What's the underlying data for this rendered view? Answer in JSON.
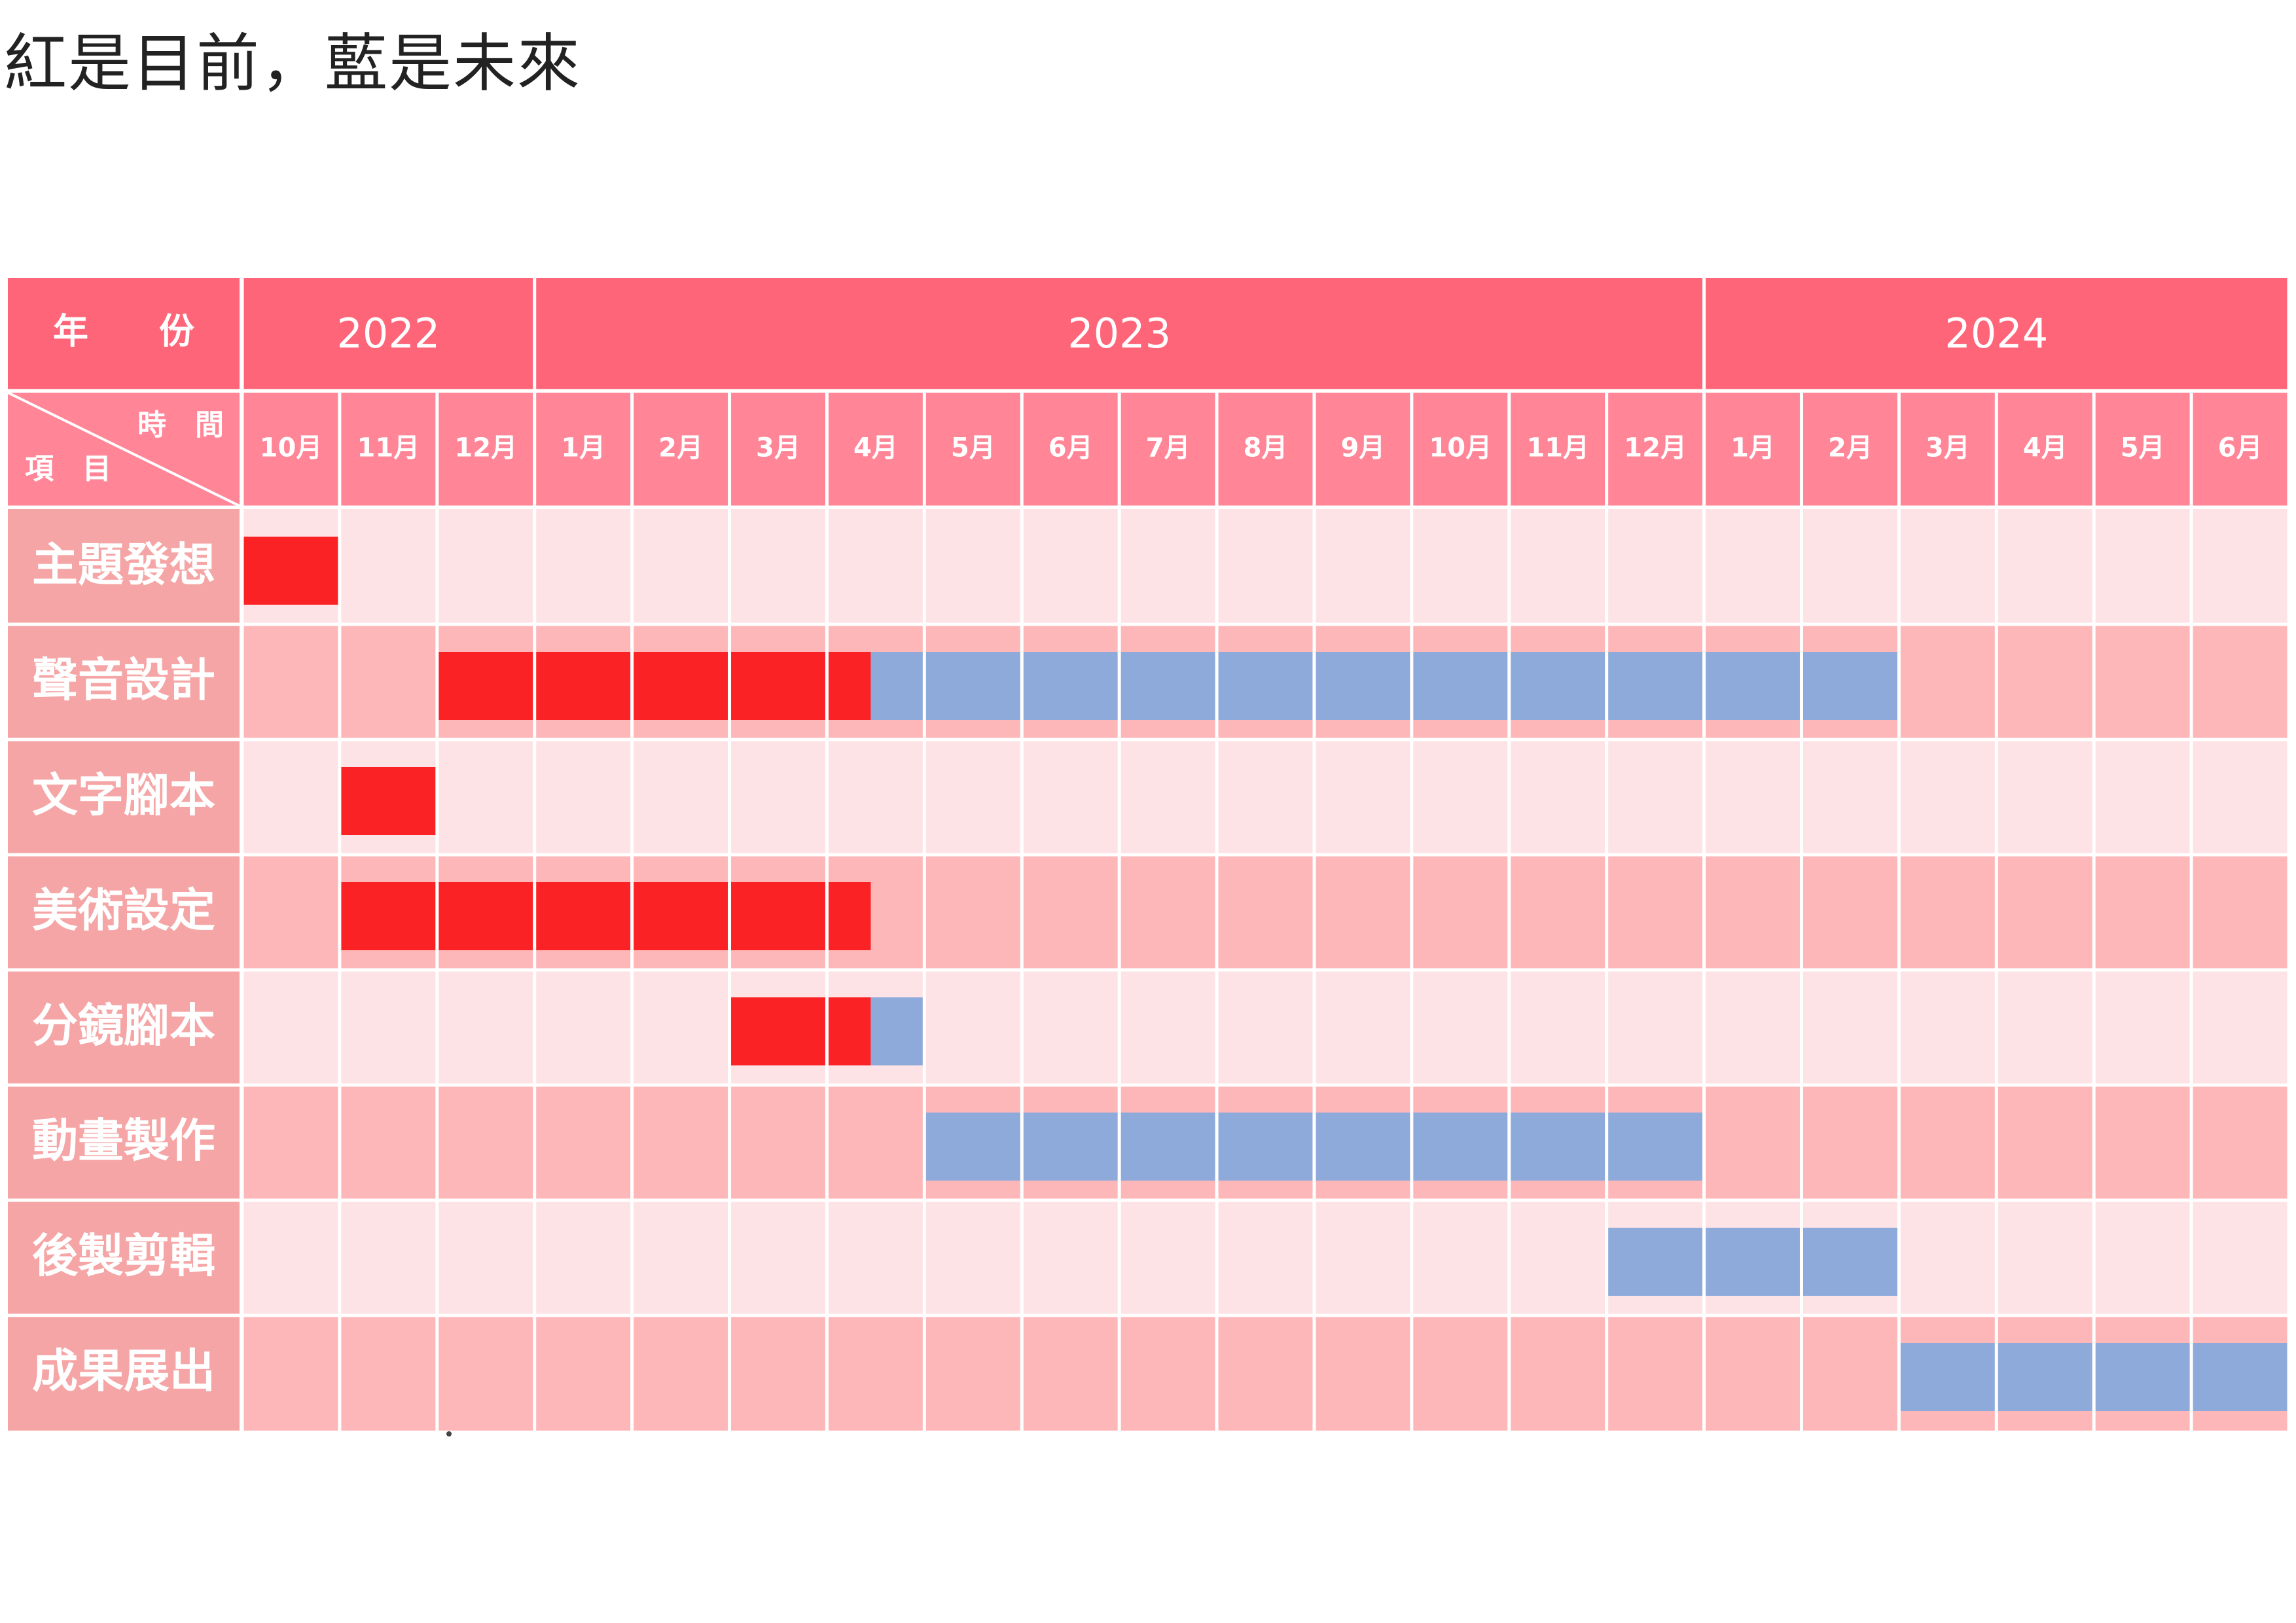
{
  "title": "紅是目前，藍是未來",
  "header": {
    "year_label": "年　　份",
    "time_label": "時　間",
    "item_label": "項　目"
  },
  "colors": {
    "header_dark": "#ff6578",
    "header_month": "#ff8597",
    "row_light": "#fde3e5",
    "row_dark": "#feb7b9",
    "label_cell": "#f5a5a5",
    "current": "#fb2226",
    "future": "#8eaadb"
  },
  "chart_data": {
    "type": "gantt",
    "title": "紅是目前，藍是未來",
    "legend": [
      {
        "name": "目前",
        "color": "#fb2226"
      },
      {
        "name": "未來",
        "color": "#8eaadb"
      }
    ],
    "years": [
      {
        "label": "2022",
        "months": 3
      },
      {
        "label": "2023",
        "months": 12
      },
      {
        "label": "2024",
        "months": 6
      }
    ],
    "months": [
      "10月",
      "11月",
      "12月",
      "1月",
      "2月",
      "3月",
      "4月",
      "5月",
      "6月",
      "7月",
      "8月",
      "9月",
      "10月",
      "11月",
      "12月",
      "1月",
      "2月",
      "3月",
      "4月",
      "5月",
      "6月"
    ],
    "tasks": [
      {
        "name": "主題發想",
        "segments": [
          {
            "start": 0,
            "end": 1,
            "status": "current"
          }
        ]
      },
      {
        "name": "聲音設計",
        "segments": [
          {
            "start": 2,
            "end": 6.45,
            "status": "current"
          },
          {
            "start": 6.45,
            "end": 17,
            "status": "future"
          }
        ]
      },
      {
        "name": "文字腳本",
        "segments": [
          {
            "start": 1,
            "end": 2,
            "status": "current"
          }
        ]
      },
      {
        "name": "美術設定",
        "segments": [
          {
            "start": 1,
            "end": 6.45,
            "status": "current"
          }
        ]
      },
      {
        "name": "分鏡腳本",
        "segments": [
          {
            "start": 5,
            "end": 6.45,
            "status": "current"
          },
          {
            "start": 6.45,
            "end": 7,
            "status": "future"
          }
        ]
      },
      {
        "name": "動畫製作",
        "segments": [
          {
            "start": 7,
            "end": 15,
            "status": "future"
          }
        ]
      },
      {
        "name": "後製剪輯",
        "segments": [
          {
            "start": 14,
            "end": 17,
            "status": "future"
          }
        ]
      },
      {
        "name": "成果展出",
        "segments": [
          {
            "start": 17,
            "end": 21,
            "status": "future"
          }
        ]
      }
    ]
  }
}
